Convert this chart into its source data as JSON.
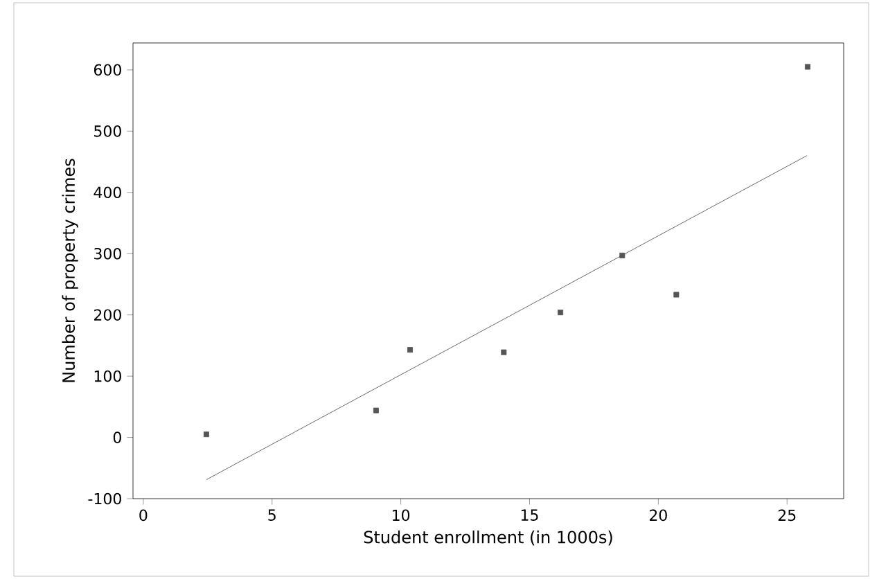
{
  "chart_data": {
    "type": "scatter",
    "xlabel": "Student enrollment (in 1000s)",
    "ylabel": "Number of property crimes",
    "xlim": [
      -0.4,
      27.2
    ],
    "ylim": [
      -100,
      644
    ],
    "xticks": [
      0,
      5,
      10,
      15,
      20,
      25
    ],
    "yticks": [
      -100,
      0,
      100,
      200,
      300,
      400,
      500,
      600
    ],
    "marker": "square",
    "series": [
      {
        "color": "#555555",
        "x": [
          2.45,
          9.04,
          10.36,
          14.0,
          16.2,
          18.6,
          20.7,
          25.8
        ],
        "values": [
          5,
          44,
          143,
          139,
          204,
          297,
          233,
          605
        ]
      },
      {
        "type": "line",
        "color": "#444444",
        "marker": "none",
        "x": [
          2.45,
          25.77
        ],
        "values": [
          -69,
          460
        ]
      }
    ]
  }
}
